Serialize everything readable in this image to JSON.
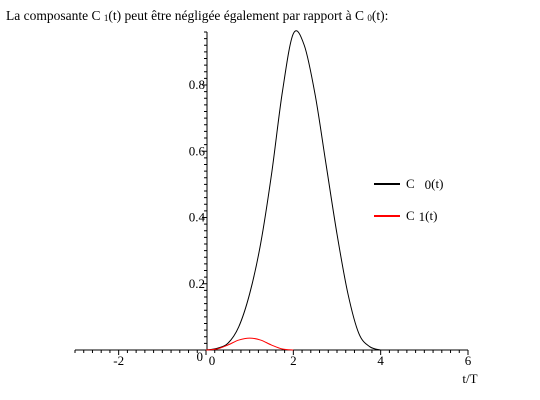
{
  "caption": {
    "prefix": "La composante C",
    "sub1": "1",
    "mid": "(t)  peut être négligée également par rapport à C",
    "sub2": "0",
    "suffix": "(t):"
  },
  "chart_data": {
    "type": "line",
    "title": "La composante C1(t)  peut être négligée également par rapport à C0(t):",
    "xlabel": "t/T",
    "ylabel": "",
    "xlim": [
      -3,
      6
    ],
    "ylim": [
      0,
      0.96
    ],
    "x_ticks": [
      -2,
      0,
      2,
      4,
      6
    ],
    "x_tick_labels": [
      "-2",
      "0",
      "2",
      "4",
      "6"
    ],
    "y_ticks": [
      0.2,
      0.4,
      0.6,
      0.8
    ],
    "y_tick_labels": [
      "0.2",
      "0.4",
      "0.6",
      "0.8"
    ],
    "origin_labels": [
      "0",
      "0"
    ],
    "grid": false,
    "legend_position": "right",
    "series": [
      {
        "name": "C0(t)",
        "legend_main": "C",
        "legend_sub": "0",
        "legend_tail": "(t)",
        "color": "#000000",
        "x": [
          0,
          0.25,
          0.5,
          0.75,
          1.0,
          1.25,
          1.5,
          1.75,
          2.0,
          2.25,
          2.5,
          2.75,
          3.0,
          3.25,
          3.5,
          3.75,
          4.0
        ],
        "y": [
          0,
          0.005,
          0.02,
          0.07,
          0.17,
          0.32,
          0.53,
          0.78,
          0.955,
          0.92,
          0.77,
          0.56,
          0.35,
          0.17,
          0.05,
          0.01,
          0
        ]
      },
      {
        "name": "C1(t)",
        "legend_main": "C",
        "legend_sub": "1",
        "legend_tail": "(t)",
        "color": "#ff0000",
        "x": [
          0,
          0.25,
          0.5,
          0.75,
          1.0,
          1.25,
          1.5,
          1.75,
          2.0
        ],
        "y": [
          0,
          0.003,
          0.015,
          0.03,
          0.036,
          0.03,
          0.015,
          0.003,
          0
        ]
      }
    ]
  }
}
